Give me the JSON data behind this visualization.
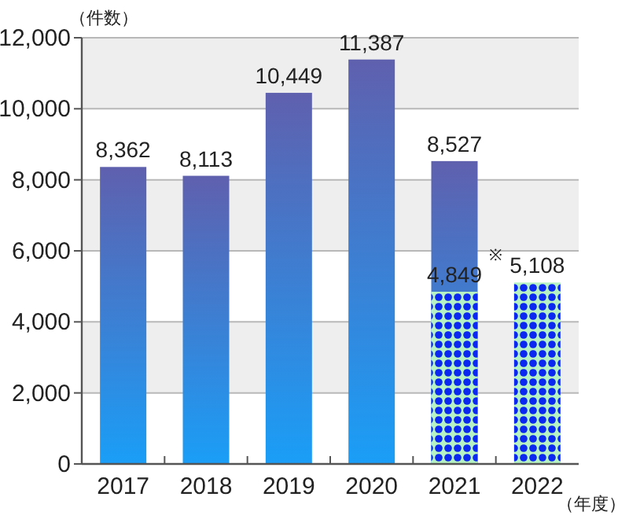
{
  "chart_data": {
    "type": "bar",
    "ylabel": "（件数）",
    "xlabel": "（年度）",
    "categories": [
      "2017",
      "2018",
      "2019",
      "2020",
      "2021",
      "2022"
    ],
    "series": [
      {
        "color": "#5f60ae",
        "values": [
          8362,
          8113,
          10449,
          11387,
          8527,
          null
        ],
        "value_labels": [
          "8,362",
          "8,113",
          "10,449",
          "11,387",
          "8,527",
          null
        ]
      },
      {
        "color": "#0a28f0",
        "values": [
          null,
          null,
          null,
          null,
          4849,
          5108
        ],
        "value_labels": [
          null,
          null,
          null,
          null,
          "4,849",
          "5,108"
        ]
      }
    ],
    "ylim": [
      0,
      12000
    ],
    "yticks": [
      {
        "value": 0,
        "label": "0"
      },
      {
        "value": 2000,
        "label": "2,000"
      },
      {
        "value": 4000,
        "label": "4,000"
      },
      {
        "value": 6000,
        "label": "6,000"
      },
      {
        "value": 8000,
        "label": "8,000"
      },
      {
        "value": 10000,
        "label": "10,000"
      },
      {
        "value": 12000,
        "label": "12,000"
      }
    ],
    "grid": "y",
    "annotations": [
      {
        "text": "※",
        "x": "2021",
        "y": 4849
      }
    ]
  }
}
